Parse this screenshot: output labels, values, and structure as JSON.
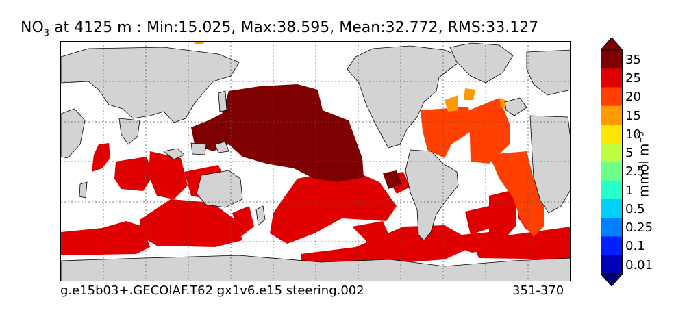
{
  "title": {
    "variable": "NO",
    "subscript": "3",
    "rest": " at 4125 m : Min:15.025, Max:38.595, Mean:32.772, RMS:33.127"
  },
  "footer": {
    "case_name": "g.e15b03+.GECOIAF.T62 gx1v6.e15 steering.002",
    "years": "351-370"
  },
  "colorbar": {
    "units_base": "mmol m",
    "units_exp": "−3",
    "levels": [
      "35",
      "25",
      "20",
      "15",
      "10",
      "5",
      "2.5",
      "1",
      "0.5",
      "0.25",
      "0.1",
      "0.01"
    ],
    "colors": [
      "#7f0000",
      "#e00000",
      "#ff4000",
      "#ff9a00",
      "#ffe600",
      "#bfff40",
      "#6dff8a",
      "#29ffc8",
      "#00d0ff",
      "#0080ff",
      "#0020ff",
      "#0000b8"
    ],
    "over_color": "#7f0000",
    "under_color": "#00007f"
  },
  "map_colors": {
    "land": "#d3d3d3",
    "ocean_nodata": "#ffffff",
    "gridlines": "#555555"
  }
}
